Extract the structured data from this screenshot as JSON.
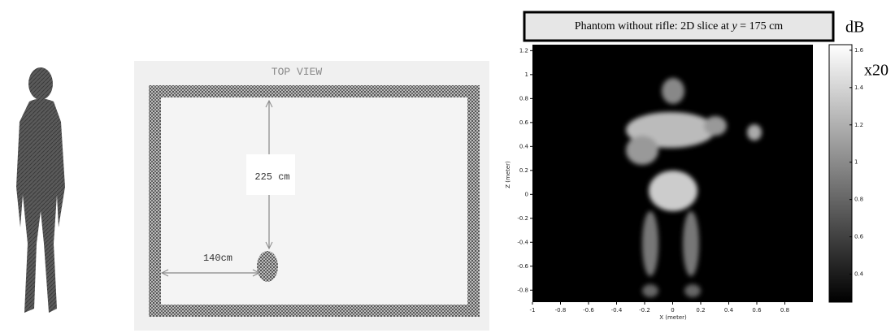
{
  "figure": {
    "top_view": {
      "title": "TOP VIEW",
      "vertical_distance": "225 cm",
      "horizontal_distance": "140cm"
    },
    "image_panel": {
      "title_before": "Phantom without rifle: 2D  slice at",
      "title_var": "y",
      "title_after": "= 175 cm",
      "x_label": "X (meter)",
      "y_label": "Z (meter)",
      "xlim": [
        -1,
        1.0
      ],
      "xticks": [
        -1,
        -0.8,
        -0.6,
        -0.4,
        -0.2,
        0,
        0.2,
        0.4,
        0.6,
        0.8
      ],
      "ylim": [
        -0.9,
        1.25
      ],
      "yticks": [
        1.2,
        1,
        0.8,
        0.6,
        0.4,
        0.2,
        0,
        -0.2,
        -0.4,
        -0.6,
        -0.8
      ],
      "colorbar_unit": "dB",
      "colorbar_scale": "x20",
      "clim": [
        0.25,
        1.63
      ],
      "cticks": [
        1.6,
        1.4,
        1.2,
        1,
        0.8,
        0.6,
        0.4
      ]
    }
  }
}
